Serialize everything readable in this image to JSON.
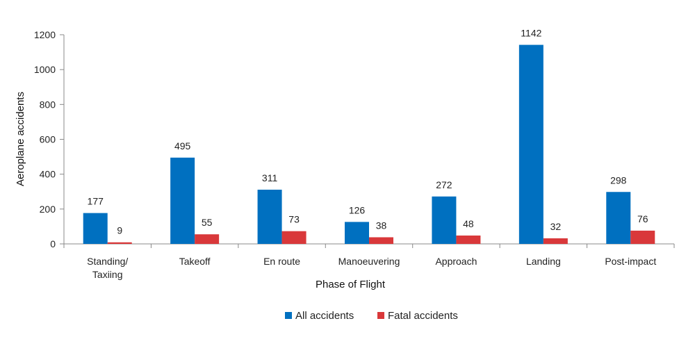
{
  "chart_data": {
    "type": "bar",
    "title": "",
    "xlabel": "Phase of Flight",
    "ylabel": "Aeroplane accidents",
    "ylim": [
      0,
      1200
    ],
    "yticks": [
      0,
      200,
      400,
      600,
      800,
      1000,
      1200
    ],
    "grid": false,
    "legend_position": "bottom",
    "categories": [
      [
        "Standing/",
        "Taxiing"
      ],
      [
        "Takeoff"
      ],
      [
        "En route"
      ],
      [
        "Manoeuvering"
      ],
      [
        "Approach"
      ],
      [
        "Landing"
      ],
      [
        "Post-impact"
      ]
    ],
    "series": [
      {
        "name": "All accidents",
        "color": "#0070C0",
        "values": [
          177,
          495,
          311,
          126,
          272,
          1142,
          298
        ]
      },
      {
        "name": "Fatal accidents",
        "color": "#D9383A",
        "values": [
          9,
          55,
          73,
          38,
          48,
          32,
          76
        ]
      }
    ]
  }
}
